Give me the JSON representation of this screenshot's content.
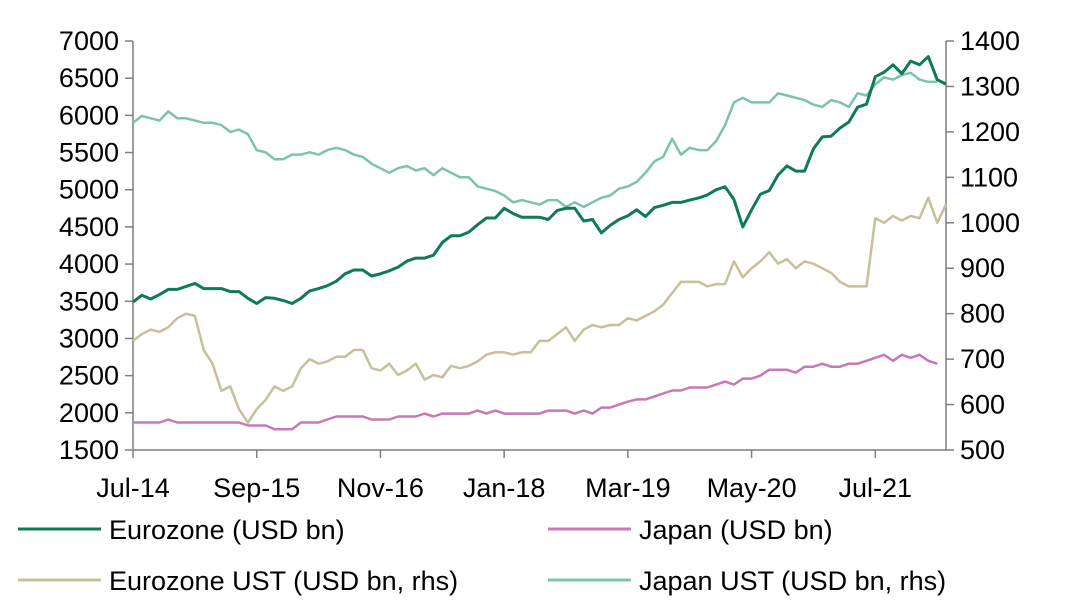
{
  "chart_data": {
    "type": "line",
    "title": "",
    "x_tick_labels": [
      "Jul-14",
      "Sep-15",
      "Nov-16",
      "Jan-18",
      "Mar-19",
      "May-20",
      "Jul-21"
    ],
    "x_range": [
      "2014-07",
      "2022-02"
    ],
    "y_left": {
      "min": 1500,
      "max": 7000,
      "ticks": [
        1500,
        2000,
        2500,
        3000,
        3500,
        4000,
        4500,
        5000,
        5500,
        6000,
        6500,
        7000
      ]
    },
    "y_right": {
      "min": 500,
      "max": 1400,
      "ticks": [
        500,
        600,
        700,
        800,
        900,
        1000,
        1100,
        1200,
        1300,
        1400
      ]
    },
    "grid": false,
    "legend_position": "bottom",
    "series": [
      {
        "name": "Eurozone (USD bn)",
        "axis": "left",
        "color": "#0e7c52",
        "start": "2014-07",
        "values": [
          3490,
          3580,
          3530,
          3590,
          3660,
          3660,
          3700,
          3740,
          3670,
          3670,
          3670,
          3630,
          3630,
          3540,
          3470,
          3550,
          3540,
          3510,
          3470,
          3540,
          3640,
          3670,
          3710,
          3770,
          3870,
          3920,
          3920,
          3840,
          3870,
          3910,
          3960,
          4040,
          4080,
          4080,
          4120,
          4290,
          4380,
          4380,
          4430,
          4530,
          4620,
          4620,
          4750,
          4680,
          4630,
          4630,
          4630,
          4600,
          4720,
          4750,
          4750,
          4580,
          4600,
          4420,
          4520,
          4600,
          4650,
          4730,
          4640,
          4760,
          4790,
          4830,
          4830,
          4860,
          4890,
          4930,
          5000,
          5040,
          4870,
          4500,
          4730,
          4940,
          4990,
          5200,
          5320,
          5250,
          5250,
          5550,
          5710,
          5720,
          5830,
          5910,
          6110,
          6150,
          6520,
          6580,
          6680,
          6560,
          6730,
          6680,
          6790,
          6480,
          6420
        ]
      },
      {
        "name": "Japan (USD bn)",
        "axis": "left",
        "color": "#c878b8",
        "start": "2014-07",
        "values": [
          1870,
          1870,
          1870,
          1870,
          1910,
          1870,
          1870,
          1870,
          1870,
          1870,
          1870,
          1870,
          1870,
          1830,
          1830,
          1830,
          1780,
          1780,
          1780,
          1870,
          1870,
          1870,
          1910,
          1950,
          1950,
          1950,
          1950,
          1910,
          1910,
          1910,
          1950,
          1950,
          1950,
          1990,
          1950,
          1990,
          1990,
          1990,
          1990,
          2030,
          1990,
          2030,
          1990,
          1990,
          1990,
          1990,
          1990,
          2030,
          2030,
          2030,
          1990,
          2030,
          1990,
          2070,
          2070,
          2110,
          2150,
          2180,
          2180,
          2220,
          2260,
          2300,
          2300,
          2340,
          2340,
          2340,
          2380,
          2420,
          2380,
          2460,
          2460,
          2500,
          2580,
          2580,
          2580,
          2540,
          2620,
          2620,
          2660,
          2620,
          2620,
          2660,
          2660,
          2700,
          2740,
          2780,
          2700,
          2780,
          2740,
          2780,
          2700,
          2660
        ]
      },
      {
        "name": "Eurozone UST (USD bn, rhs)",
        "axis": "right",
        "color": "#c8c09a",
        "start": "2014-07",
        "values": [
          740,
          755,
          765,
          760,
          770,
          790,
          800,
          795,
          720,
          690,
          630,
          640,
          590,
          560,
          590,
          610,
          640,
          630,
          640,
          680,
          700,
          690,
          695,
          705,
          705,
          720,
          720,
          680,
          675,
          690,
          665,
          675,
          690,
          655,
          665,
          660,
          685,
          680,
          685,
          695,
          710,
          715,
          715,
          710,
          715,
          715,
          740,
          740,
          755,
          770,
          740,
          765,
          775,
          770,
          775,
          775,
          790,
          785,
          795,
          805,
          820,
          845,
          870,
          870,
          870,
          860,
          865,
          865,
          915,
          880,
          900,
          915,
          935,
          910,
          920,
          900,
          915,
          910,
          900,
          890,
          870,
          860,
          860,
          860,
          1010,
          1000,
          1015,
          1005,
          1015,
          1010,
          1055,
          1000,
          1040
        ]
      },
      {
        "name": "Japan UST (USD bn, rhs)",
        "axis": "right",
        "color": "#7cc4a8",
        "start": "2014-07",
        "values": [
          1220,
          1235,
          1230,
          1225,
          1245,
          1230,
          1230,
          1225,
          1220,
          1220,
          1215,
          1200,
          1205,
          1195,
          1160,
          1155,
          1140,
          1140,
          1150,
          1150,
          1155,
          1150,
          1160,
          1165,
          1160,
          1150,
          1145,
          1130,
          1120,
          1110,
          1120,
          1125,
          1115,
          1120,
          1105,
          1120,
          1110,
          1100,
          1100,
          1080,
          1075,
          1070,
          1060,
          1045,
          1050,
          1045,
          1040,
          1050,
          1050,
          1035,
          1045,
          1035,
          1045,
          1055,
          1060,
          1075,
          1080,
          1090,
          1110,
          1135,
          1145,
          1185,
          1150,
          1165,
          1160,
          1160,
          1180,
          1215,
          1265,
          1275,
          1265,
          1265,
          1265,
          1285,
          1280,
          1275,
          1270,
          1260,
          1255,
          1270,
          1265,
          1255,
          1285,
          1280,
          1305,
          1320,
          1315,
          1325,
          1330,
          1315,
          1310,
          1310
        ]
      }
    ]
  },
  "legend": [
    {
      "label": "Eurozone (USD bn)",
      "color": "#0e7c52"
    },
    {
      "label": "Japan (USD bn)",
      "color": "#c878b8"
    },
    {
      "label": "Eurozone UST (USD bn, rhs)",
      "color": "#c8c09a"
    },
    {
      "label": "Japan UST (USD bn, rhs)",
      "color": "#7cc4a8"
    }
  ]
}
